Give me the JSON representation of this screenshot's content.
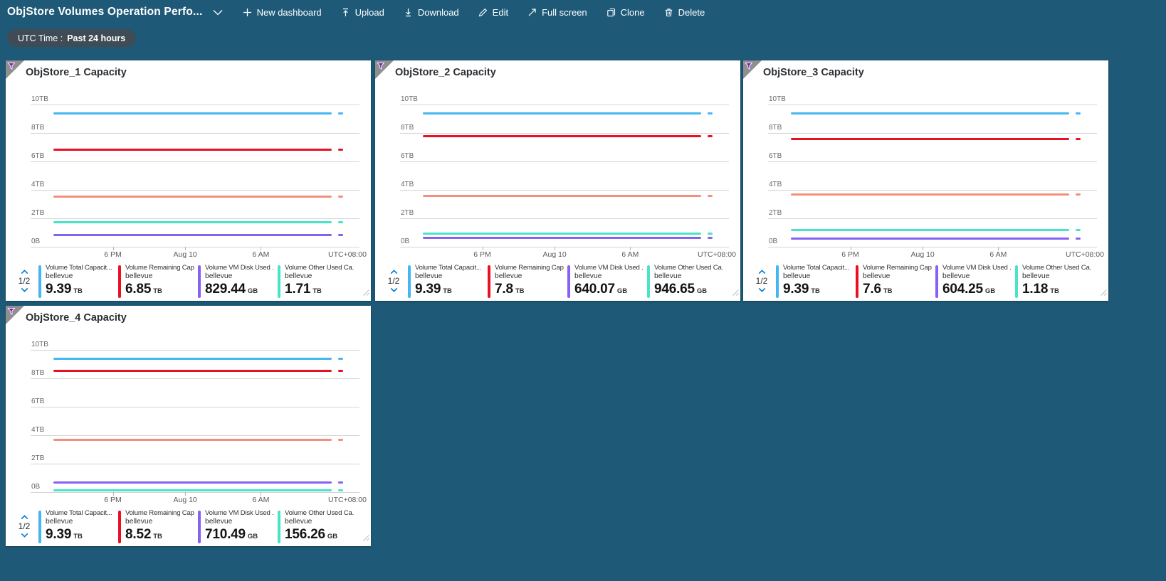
{
  "colors": {
    "blue": "#45b6f0",
    "red": "#e81123",
    "orange": "#f2907b",
    "teal": "#49e3c8",
    "purple": "#8661f2",
    "accent": "#0078d4"
  },
  "header": {
    "title": "ObjStore Volumes Operation Perfo...",
    "actions": [
      {
        "label": "New dashboard"
      },
      {
        "label": "Upload"
      },
      {
        "label": "Download"
      },
      {
        "label": "Edit"
      },
      {
        "label": "Full screen"
      },
      {
        "label": "Clone"
      },
      {
        "label": "Delete"
      }
    ]
  },
  "time_pill": {
    "prefix": "UTC Time :",
    "value": "Past 24 hours"
  },
  "tiles": [
    {
      "title": "ObjStore_1 Capacity",
      "pagination": "1/2",
      "legend": [
        {
          "label": "Volume Total Capacit...",
          "resource": "bellevue",
          "value": "9.39",
          "unit": "TB",
          "color": "blue"
        },
        {
          "label": "Volume Remaining Cap...",
          "resource": "bellevue",
          "value": "6.85",
          "unit": "TB",
          "color": "red"
        },
        {
          "label": "Volume VM Disk Used ...",
          "resource": "bellevue",
          "value": "829.44",
          "unit": "GB",
          "color": "purple"
        },
        {
          "label": "Volume Other Used Ca...",
          "resource": "bellevue",
          "value": "1.71",
          "unit": "TB",
          "color": "teal"
        }
      ]
    },
    {
      "title": "ObjStore_2 Capacity",
      "pagination": "1/2",
      "legend": [
        {
          "label": "Volume Total Capacit...",
          "resource": "bellevue",
          "value": "9.39",
          "unit": "TB",
          "color": "blue"
        },
        {
          "label": "Volume Remaining Cap...",
          "resource": "bellevue",
          "value": "7.8",
          "unit": "TB",
          "color": "red"
        },
        {
          "label": "Volume VM Disk Used ...",
          "resource": "bellevue",
          "value": "640.07",
          "unit": "GB",
          "color": "purple"
        },
        {
          "label": "Volume Other Used Ca...",
          "resource": "bellevue",
          "value": "946.65",
          "unit": "GB",
          "color": "teal"
        }
      ]
    },
    {
      "title": "ObjStore_3 Capacity",
      "pagination": "1/2",
      "legend": [
        {
          "label": "Volume Total Capacit...",
          "resource": "bellevue",
          "value": "9.39",
          "unit": "TB",
          "color": "blue"
        },
        {
          "label": "Volume Remaining Cap...",
          "resource": "bellevue",
          "value": "7.6",
          "unit": "TB",
          "color": "red"
        },
        {
          "label": "Volume VM Disk Used ...",
          "resource": "bellevue",
          "value": "604.25",
          "unit": "GB",
          "color": "purple"
        },
        {
          "label": "Volume Other Used Ca...",
          "resource": "bellevue",
          "value": "1.18",
          "unit": "TB",
          "color": "teal"
        }
      ]
    },
    {
      "title": "ObjStore_4 Capacity",
      "pagination": "1/2",
      "legend": [
        {
          "label": "Volume Total Capacit...",
          "resource": "bellevue",
          "value": "9.39",
          "unit": "TB",
          "color": "blue"
        },
        {
          "label": "Volume Remaining Cap...",
          "resource": "bellevue",
          "value": "8.52",
          "unit": "TB",
          "color": "red"
        },
        {
          "label": "Volume VM Disk Used ...",
          "resource": "bellevue",
          "value": "710.49",
          "unit": "GB",
          "color": "purple"
        },
        {
          "label": "Volume Other Used Ca...",
          "resource": "bellevue",
          "value": "156.26",
          "unit": "GB",
          "color": "teal"
        }
      ]
    }
  ],
  "chart_data": [
    {
      "type": "line",
      "title": "ObjStore_1 Capacity",
      "ylim": [
        0,
        10
      ],
      "y_unit": "TB",
      "y_ticks": [
        "10TB",
        "8TB",
        "6TB",
        "4TB",
        "2TB",
        "0B"
      ],
      "x_ticks": [
        "6 PM",
        "Aug 10",
        "6 AM"
      ],
      "x_right_label": "UTC+08:00",
      "series": [
        {
          "name": "Volume Total Capacit...",
          "color": "blue",
          "value_tb": 9.39
        },
        {
          "name": "Volume Remaining Cap...",
          "color": "red",
          "value_tb": 6.85
        },
        {
          "name": "unlabeled (legend page 2/2)",
          "color": "orange",
          "value_tb": 3.55
        },
        {
          "name": "Volume Other Used Ca...",
          "color": "teal",
          "value_tb": 1.71
        },
        {
          "name": "Volume VM Disk Used ...",
          "color": "purple",
          "value_tb": 0.81
        }
      ]
    },
    {
      "type": "line",
      "title": "ObjStore_2 Capacity",
      "ylim": [
        0,
        10
      ],
      "y_unit": "TB",
      "y_ticks": [
        "10TB",
        "8TB",
        "6TB",
        "4TB",
        "2TB",
        "0B"
      ],
      "x_ticks": [
        "6 PM",
        "Aug 10",
        "6 AM"
      ],
      "x_right_label": "UTC+08:00",
      "series": [
        {
          "name": "Volume Total Capacit...",
          "color": "blue",
          "value_tb": 9.39
        },
        {
          "name": "Volume Remaining Cap...",
          "color": "red",
          "value_tb": 7.8
        },
        {
          "name": "unlabeled (legend page 2/2)",
          "color": "orange",
          "value_tb": 3.6
        },
        {
          "name": "Volume Other Used Ca...",
          "color": "teal",
          "value_tb": 0.92
        },
        {
          "name": "Volume VM Disk Used ...",
          "color": "purple",
          "value_tb": 0.63
        }
      ]
    },
    {
      "type": "line",
      "title": "ObjStore_3 Capacity",
      "ylim": [
        0,
        10
      ],
      "y_unit": "TB",
      "y_ticks": [
        "10TB",
        "8TB",
        "6TB",
        "4TB",
        "2TB",
        "0B"
      ],
      "x_ticks": [
        "6 PM",
        "Aug 10",
        "6 AM"
      ],
      "x_right_label": "UTC+08:00",
      "series": [
        {
          "name": "Volume Total Capacit...",
          "color": "blue",
          "value_tb": 9.39
        },
        {
          "name": "Volume Remaining Cap...",
          "color": "red",
          "value_tb": 7.6
        },
        {
          "name": "unlabeled (legend page 2/2)",
          "color": "orange",
          "value_tb": 3.7
        },
        {
          "name": "Volume Other Used Ca...",
          "color": "teal",
          "value_tb": 1.18
        },
        {
          "name": "Volume VM Disk Used ...",
          "color": "purple",
          "value_tb": 0.59
        }
      ]
    },
    {
      "type": "line",
      "title": "ObjStore_4 Capacity",
      "ylim": [
        0,
        10
      ],
      "y_unit": "TB",
      "y_ticks": [
        "10TB",
        "8TB",
        "6TB",
        "4TB",
        "2TB",
        "0B"
      ],
      "x_ticks": [
        "6 PM",
        "Aug 10",
        "6 AM"
      ],
      "x_right_label": "UTC+08:00",
      "series": [
        {
          "name": "Volume Total Capacit...",
          "color": "blue",
          "value_tb": 9.39
        },
        {
          "name": "Volume Remaining Cap...",
          "color": "red",
          "value_tb": 8.52
        },
        {
          "name": "unlabeled (legend page 2/2)",
          "color": "orange",
          "value_tb": 3.7
        },
        {
          "name": "Volume VM Disk Used ...",
          "color": "purple",
          "value_tb": 0.69
        },
        {
          "name": "Volume Other Used Ca...",
          "color": "teal",
          "value_tb": 0.15
        }
      ]
    }
  ]
}
